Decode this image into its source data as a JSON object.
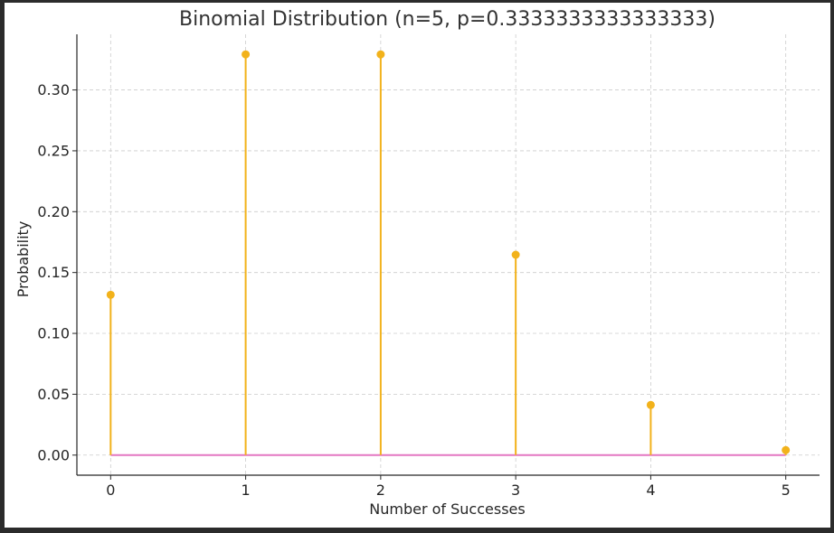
{
  "chart_data": {
    "type": "stem",
    "title": "Binomial Distribution (n=5, p=0.3333333333333333)",
    "xlabel": "Number of Successes",
    "ylabel": "Probability",
    "x": [
      0,
      1,
      2,
      3,
      4,
      5
    ],
    "values": [
      0.1317,
      0.3292,
      0.3292,
      0.1646,
      0.0412,
      0.0041
    ],
    "xlim": [
      -0.25,
      5.25
    ],
    "ylim": [
      -0.0165,
      0.3457
    ],
    "xticks": [
      0,
      1,
      2,
      3,
      4,
      5
    ],
    "yticks": [
      0.0,
      0.05,
      0.1,
      0.15,
      0.2,
      0.25,
      0.3
    ],
    "ytick_labels": [
      "0.00",
      "0.05",
      "0.10",
      "0.15",
      "0.20",
      "0.25",
      "0.30"
    ],
    "grid": true,
    "grid_style": "dashed",
    "colors": {
      "stem": "#f2b21b",
      "marker": "#f2b21b",
      "baseline": "#e377c2",
      "grid": "#cccccc",
      "axis": "#262626"
    }
  }
}
